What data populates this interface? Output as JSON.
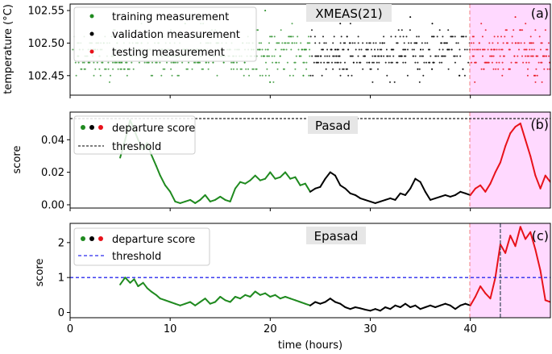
{
  "chart_data": {
    "type": "line",
    "xlabel": "time (hours)",
    "xlim": [
      0,
      48
    ],
    "xticks": [
      0,
      10,
      20,
      30,
      40
    ],
    "split_times": {
      "train_end": 24,
      "test_start": 40
    },
    "colors": {
      "train": "#1f8a1f",
      "validation": "#000000",
      "test": "#e8111a",
      "test_region": "#ffd9ff",
      "test_boundary": "#f08080",
      "threshold_b": "#333333",
      "threshold_c": "#2a2aee",
      "detection": "#334455"
    },
    "panels": [
      {
        "id": "a",
        "letter": "(a)",
        "title": "XMEAS(21)",
        "ylabel": "temperature (°C)",
        "ylim": [
          102.42,
          102.56
        ],
        "yticks": [
          "102.45",
          "102.50",
          "102.55"
        ],
        "y_levels": [
          102.44,
          102.45,
          102.46,
          102.47,
          102.48,
          102.49,
          102.5,
          102.51,
          102.52,
          102.53
        ],
        "legend": [
          {
            "label": "training measurement",
            "color": "train"
          },
          {
            "label": "validation measurement",
            "color": "validation"
          },
          {
            "label": "testing measurement",
            "color": "test"
          }
        ]
      },
      {
        "id": "b",
        "letter": "(b)",
        "title": "Pasad",
        "ylabel": "score",
        "ylim": [
          -0.002,
          0.057
        ],
        "yticks": [
          "0.00",
          "0.02",
          "0.04"
        ],
        "threshold": 0.053,
        "legend": [
          {
            "label": "departure score",
            "color": "dots"
          },
          {
            "label": "threshold",
            "color": "threshold_b"
          }
        ],
        "series": [
          {
            "name": "departure score",
            "x": [
              5.0,
              5.5,
              6.0,
              6.4,
              6.8,
              7.3,
              7.7,
              8.1,
              8.6,
              9.0,
              9.5,
              10.0,
              10.5,
              11.0,
              11.5,
              12.0,
              12.5,
              13.0,
              13.5,
              14.0,
              14.5,
              15.0,
              15.5,
              16.0,
              16.5,
              17.0,
              17.5,
              18.0,
              18.5,
              19.0,
              19.5,
              20.0,
              20.5,
              21.0,
              21.5,
              22.0,
              22.5,
              23.0,
              23.5,
              24.0,
              24.5,
              25.0,
              25.5,
              26.0,
              26.5,
              27.0,
              27.5,
              28.0,
              28.5,
              29.0,
              29.5,
              30.0,
              30.5,
              31.0,
              31.5,
              32.0,
              32.5,
              33.0,
              33.5,
              34.0,
              34.5,
              35.0,
              35.5,
              36.0,
              36.5,
              37.0,
              37.5,
              38.0,
              38.5,
              39.0,
              39.5,
              40.0,
              40.5,
              41.0,
              41.5,
              42.0,
              42.5,
              43.0,
              43.5,
              44.0,
              44.5,
              45.0,
              45.5,
              46.0,
              46.5,
              47.0,
              47.5,
              48.0
            ],
            "y": [
              0.029,
              0.04,
              0.052,
              0.046,
              0.04,
              0.034,
              0.038,
              0.031,
              0.024,
              0.018,
              0.012,
              0.008,
              0.002,
              0.001,
              0.002,
              0.003,
              0.001,
              0.003,
              0.006,
              0.002,
              0.003,
              0.005,
              0.003,
              0.002,
              0.01,
              0.014,
              0.013,
              0.015,
              0.018,
              0.015,
              0.016,
              0.02,
              0.016,
              0.017,
              0.02,
              0.016,
              0.017,
              0.012,
              0.013,
              0.008,
              0.01,
              0.011,
              0.016,
              0.02,
              0.018,
              0.012,
              0.01,
              0.007,
              0.006,
              0.004,
              0.003,
              0.002,
              0.001,
              0.002,
              0.003,
              0.004,
              0.003,
              0.007,
              0.006,
              0.01,
              0.016,
              0.014,
              0.008,
              0.003,
              0.004,
              0.005,
              0.006,
              0.005,
              0.006,
              0.008,
              0.007,
              0.006,
              0.01,
              0.012,
              0.008,
              0.013,
              0.02,
              0.026,
              0.036,
              0.044,
              0.048,
              0.05,
              0.04,
              0.03,
              0.018,
              0.01,
              0.018,
              0.014
            ]
          }
        ]
      },
      {
        "id": "c",
        "letter": "(c)",
        "title": "Epasad",
        "ylabel": "score",
        "ylim": [
          -0.15,
          2.55
        ],
        "yticks": [
          "0",
          "1",
          "2"
        ],
        "threshold": 1.0,
        "detection_time": 43.0,
        "legend": [
          {
            "label": "departure score",
            "color": "dots"
          },
          {
            "label": "threshold",
            "color": "threshold_c"
          }
        ],
        "series": [
          {
            "name": "departure score",
            "x": [
              5.0,
              5.5,
              6.0,
              6.4,
              6.8,
              7.3,
              7.7,
              8.1,
              8.6,
              9.0,
              9.5,
              10.0,
              10.5,
              11.0,
              11.5,
              12.0,
              12.5,
              13.0,
              13.5,
              14.0,
              14.5,
              15.0,
              15.5,
              16.0,
              16.5,
              17.0,
              17.5,
              18.0,
              18.5,
              19.0,
              19.5,
              20.0,
              20.5,
              21.0,
              21.5,
              22.0,
              22.5,
              23.0,
              23.5,
              24.0,
              24.5,
              25.0,
              25.5,
              26.0,
              26.5,
              27.0,
              27.5,
              28.0,
              28.5,
              29.0,
              29.5,
              30.0,
              30.5,
              31.0,
              31.5,
              32.0,
              32.5,
              33.0,
              33.5,
              34.0,
              34.5,
              35.0,
              35.5,
              36.0,
              36.5,
              37.0,
              37.5,
              38.0,
              38.5,
              39.0,
              39.5,
              40.0,
              40.5,
              41.0,
              41.5,
              42.0,
              42.5,
              43.0,
              43.5,
              44.0,
              44.5,
              45.0,
              45.5,
              46.0,
              46.5,
              47.0,
              47.5,
              48.0
            ],
            "y": [
              0.8,
              1.0,
              0.85,
              0.95,
              0.75,
              0.85,
              0.7,
              0.6,
              0.5,
              0.4,
              0.35,
              0.3,
              0.25,
              0.2,
              0.25,
              0.3,
              0.2,
              0.3,
              0.4,
              0.25,
              0.3,
              0.45,
              0.35,
              0.3,
              0.45,
              0.4,
              0.5,
              0.45,
              0.6,
              0.5,
              0.55,
              0.45,
              0.5,
              0.4,
              0.45,
              0.4,
              0.35,
              0.3,
              0.25,
              0.2,
              0.3,
              0.25,
              0.3,
              0.4,
              0.3,
              0.25,
              0.15,
              0.1,
              0.15,
              0.12,
              0.08,
              0.05,
              0.1,
              0.05,
              0.15,
              0.1,
              0.2,
              0.15,
              0.25,
              0.15,
              0.2,
              0.1,
              0.15,
              0.2,
              0.15,
              0.2,
              0.25,
              0.2,
              0.1,
              0.2,
              0.25,
              0.2,
              0.45,
              0.75,
              0.55,
              0.4,
              1.0,
              1.95,
              1.7,
              2.2,
              1.9,
              2.45,
              2.1,
              2.3,
              1.8,
              1.2,
              0.35,
              0.3
            ]
          }
        ]
      }
    ]
  }
}
